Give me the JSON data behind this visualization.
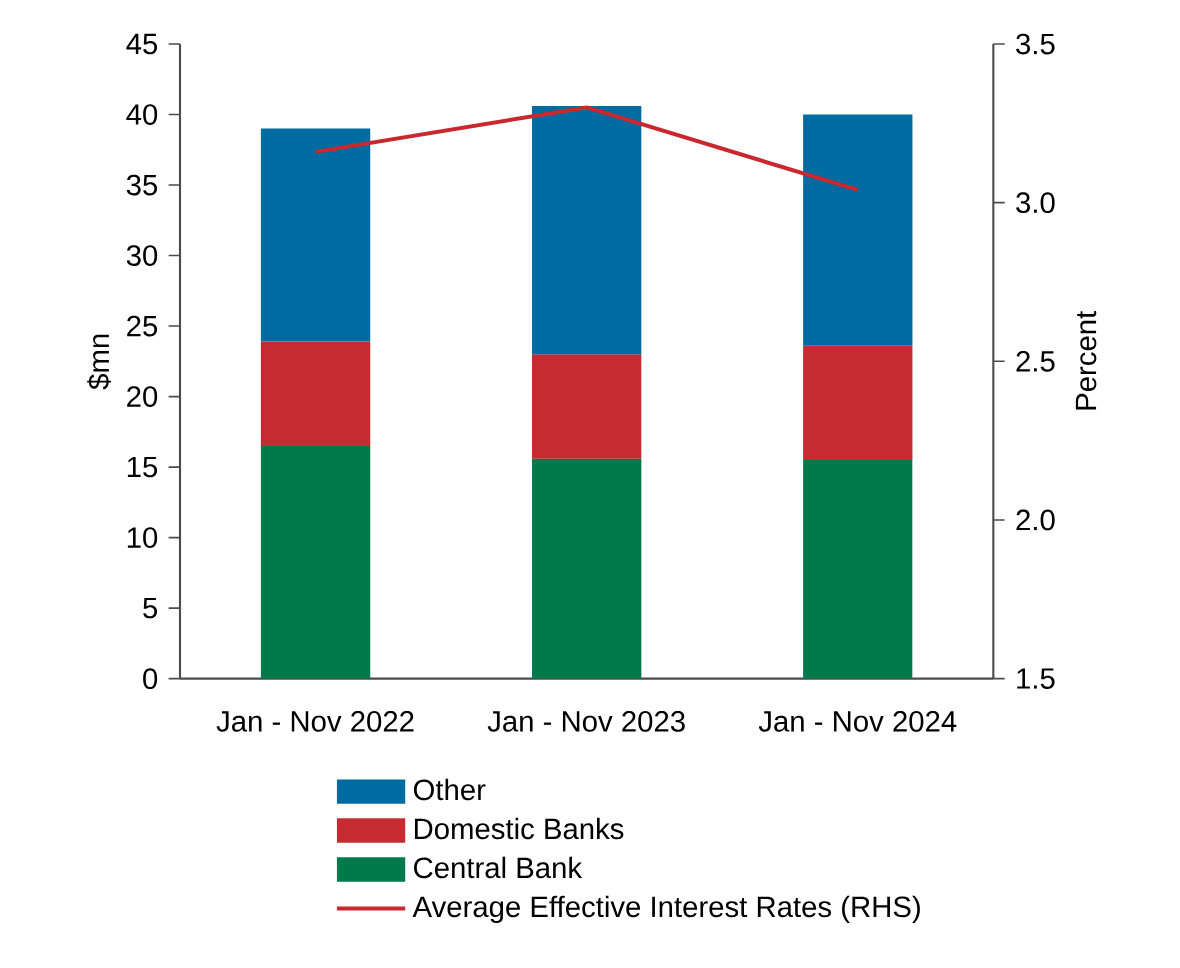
{
  "chart_data": {
    "type": "bar",
    "stacked": true,
    "categories": [
      "Jan - Nov 2022",
      "Jan - Nov 2023",
      "Jan - Nov 2024"
    ],
    "series": [
      {
        "name": "Central Bank",
        "color": "#007a4a",
        "values": [
          16.5,
          15.6,
          15.5
        ]
      },
      {
        "name": "Domestic Banks",
        "color": "#c52b30",
        "values": [
          7.4,
          7.4,
          8.1
        ]
      },
      {
        "name": "Other",
        "color": "#006ba0",
        "values": [
          15.1,
          17.6,
          16.4
        ]
      },
      {
        "name": "Average Effective Interest Rates (RHS)",
        "type": "line",
        "axis": "y2",
        "color": "#c8282e",
        "values": [
          3.16,
          3.3,
          3.04
        ]
      }
    ],
    "ylabel": "$mn",
    "y2label": "Percent",
    "ylim": [
      0,
      45
    ],
    "yticks": [
      0,
      5,
      10,
      15,
      20,
      25,
      30,
      35,
      40,
      45
    ],
    "y2lim": [
      1.5,
      3.5
    ],
    "y2ticks": [
      {
        "value": 1.5,
        "label": "1.5"
      },
      {
        "value": 2.0,
        "label": "2.0"
      },
      {
        "value": 2.5,
        "label": "2.5"
      },
      {
        "value": 3.0,
        "label": "3.0"
      },
      {
        "value": 3.5,
        "label": "3.5"
      }
    ],
    "legend": "bottom",
    "grid": false
  }
}
